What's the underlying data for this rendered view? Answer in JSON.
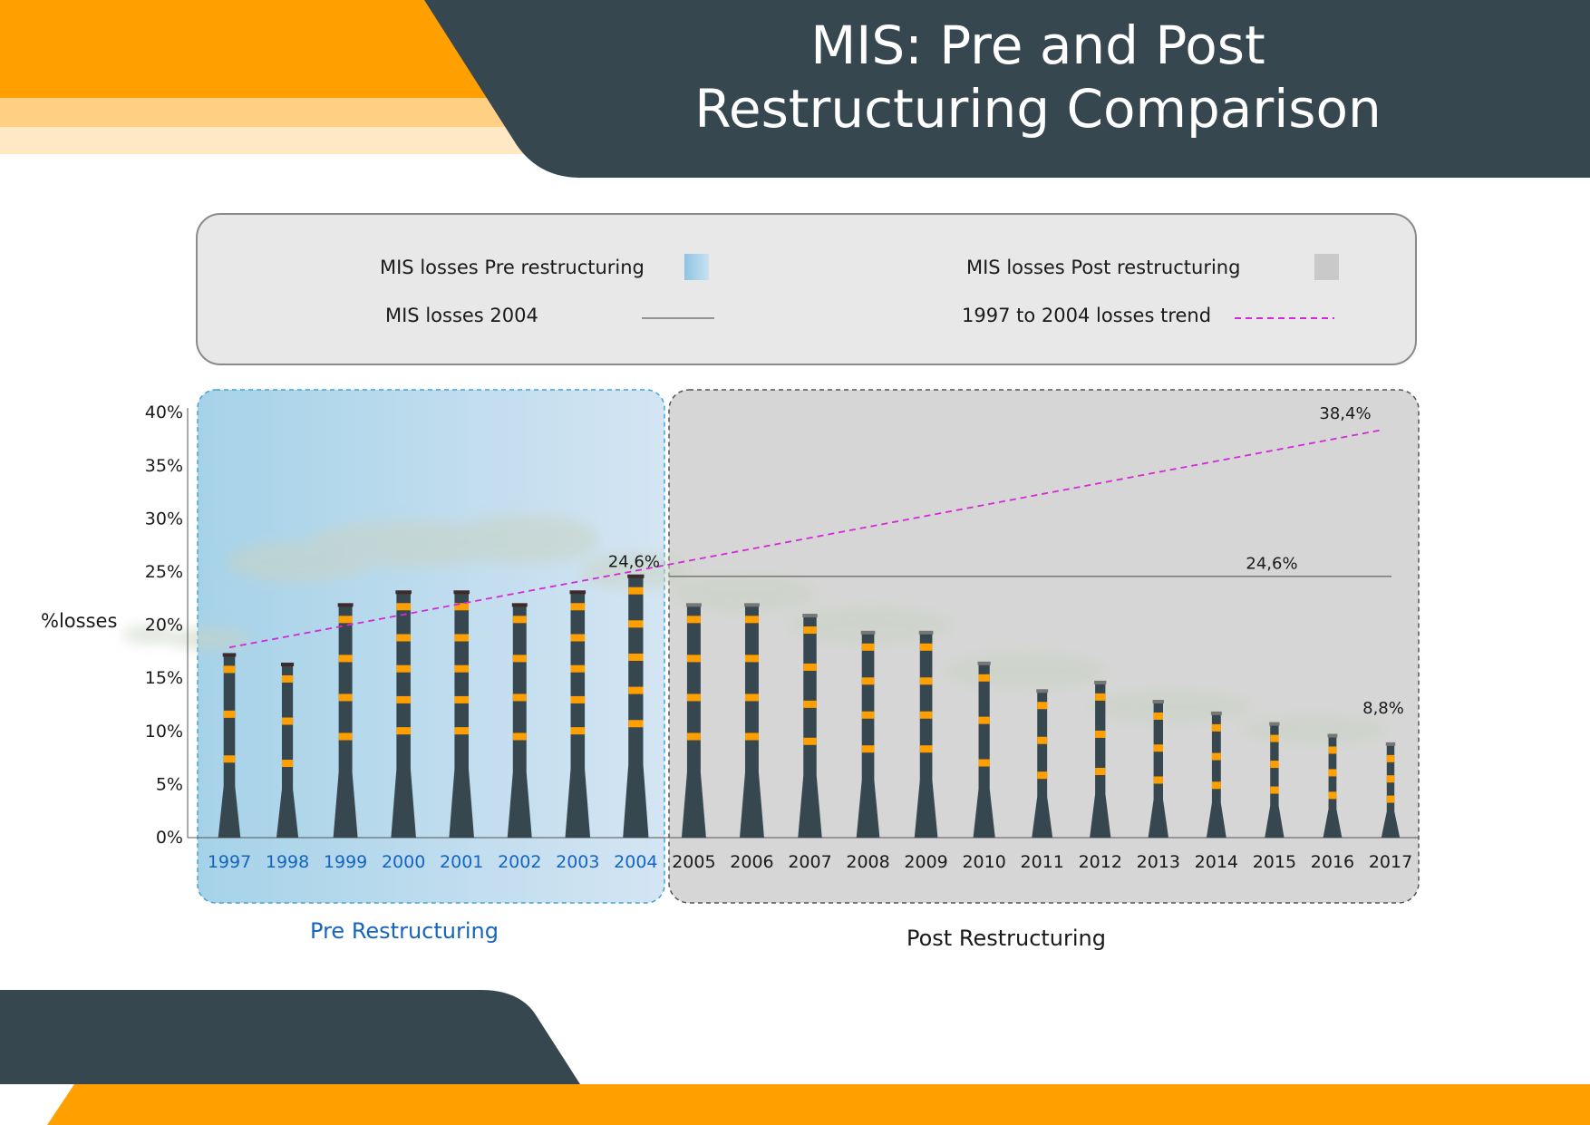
{
  "title": [
    "MIS: Pre and Post",
    "Restructuring Comparison"
  ],
  "colors": {
    "orange": "#ffa000",
    "orange_light": "#ffd084",
    "orange_pale": "#ffe8c3",
    "dark": "#37474f",
    "trend": "#d42ad6",
    "band": "#ffa000",
    "pre_region": "#a9d4ea",
    "post_region": "#d6d6d6",
    "reference_line": "#777777"
  },
  "legend": {
    "pre": "MIS losses Pre restructuring",
    "post": "MIS losses Post restructuring",
    "line_2004": "MIS losses 2004",
    "trend": "1997 to 2004 losses trend"
  },
  "periods": {
    "pre": "Pre Restructuring",
    "post": "Post Restructuring"
  },
  "chart_data": {
    "type": "bar",
    "ylabel": "%losses",
    "ylim": [
      0,
      40
    ],
    "yticks": [
      "0%",
      "5%",
      "10%",
      "15%",
      "20%",
      "25%",
      "30%",
      "35%",
      "40%"
    ],
    "categories": [
      "1997",
      "1998",
      "1999",
      "2000",
      "2001",
      "2002",
      "2003",
      "2004",
      "2005",
      "2006",
      "2007",
      "2008",
      "2009",
      "2010",
      "2011",
      "2012",
      "2013",
      "2014",
      "2015",
      "2016",
      "2017"
    ],
    "values": [
      17.2,
      16.3,
      21.9,
      23.1,
      23.1,
      21.9,
      23.1,
      24.6,
      21.9,
      21.9,
      20.9,
      19.3,
      19.3,
      16.4,
      13.8,
      14.6,
      12.8,
      11.7,
      10.7,
      9.6,
      8.8
    ],
    "pre_period": [
      "1997",
      "2004"
    ],
    "post_period": [
      "2005",
      "2017"
    ],
    "reference_line": {
      "value": 24.6,
      "label": "24,6%"
    },
    "trend": {
      "start": {
        "x": "1997",
        "y": 17.9
      },
      "end": {
        "x": "2017",
        "y": 38.4
      },
      "end_label": "38,4%"
    },
    "annotations": {
      "v2004": "24,6%",
      "v2017": "8,8%"
    },
    "grid": false
  }
}
